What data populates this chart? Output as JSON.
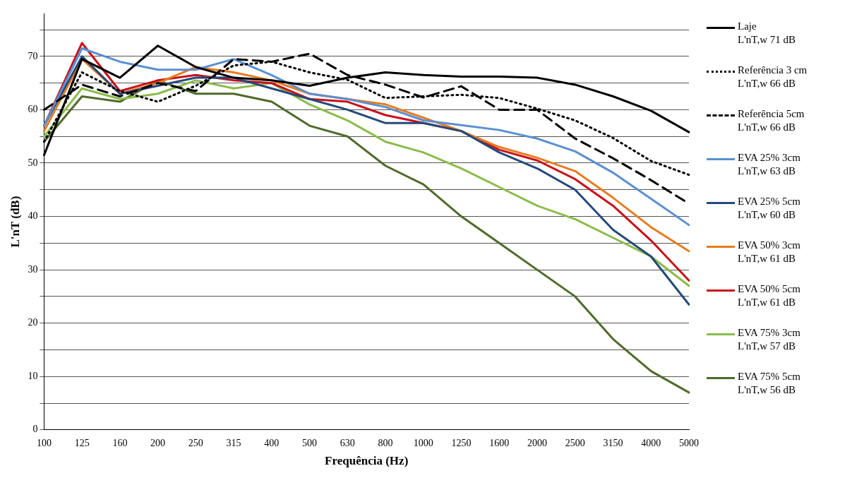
{
  "chart_data": {
    "type": "line",
    "xlabel": "Frequência (Hz)",
    "ylabel": "L'nT (dB)",
    "categories": [
      "100",
      "125",
      "160",
      "200",
      "250",
      "315",
      "400",
      "500",
      "630",
      "800",
      "1000",
      "1250",
      "1600",
      "2000",
      "2500",
      "3150",
      "4000",
      "5000"
    ],
    "ylim": [
      0,
      78
    ],
    "yticks": [
      0,
      {
        "value": 5,
        "label": null
      },
      10,
      {
        "value": 15,
        "label": null
      },
      20,
      {
        "value": 25,
        "label": null
      },
      30,
      {
        "value": 35,
        "label": null
      },
      40,
      {
        "value": 45,
        "label": null
      },
      50,
      {
        "value": 55,
        "label": null
      },
      60,
      {
        "value": 65,
        "label": null
      },
      70,
      {
        "value": 75,
        "label": null
      }
    ],
    "grid": "y",
    "legend": "right",
    "marker": "none",
    "series": [
      {
        "name": "Laje\nL'nT,w 71 dB",
        "color": "#000000",
        "line_style": "solid",
        "values": [
          51.5,
          69.5,
          66,
          72,
          68,
          66,
          65.5,
          64.5,
          66,
          67,
          66.5,
          66.2,
          66.2,
          66,
          64.7,
          62.5,
          59.8,
          55.8
        ]
      },
      {
        "name": "Referência 3 cm\nL'nT,w 66 dB",
        "color": "#000000",
        "line_style": "dotted",
        "values": [
          54,
          67,
          63.5,
          61.5,
          64.5,
          68.3,
          69,
          67,
          65.6,
          62.2,
          62.5,
          62.8,
          62.2,
          60.2,
          58,
          54.7,
          50.4,
          47.8
        ]
      },
      {
        "name": "Referência 5cm\nL'nT,w 66 dB",
        "color": "#000000",
        "line_style": "dashed",
        "values": [
          60,
          64.7,
          62.5,
          65,
          63.5,
          69.5,
          69,
          70.5,
          66.5,
          64.7,
          62.3,
          64.4,
          60,
          60,
          54.6,
          50.9,
          46.8,
          42.4
        ]
      },
      {
        "name": "EVA 25% 3cm\nL'nT,w 63 dB",
        "color": "#5b8fd0",
        "line_style": "solid",
        "values": [
          57,
          71.5,
          69,
          67.5,
          67.5,
          69.5,
          66.5,
          63,
          62,
          60.5,
          58,
          57.1,
          56.2,
          54.6,
          52.2,
          48.2,
          43.3,
          38.4
        ]
      },
      {
        "name": "EVA 25% 5cm\nL'nT,w 60 dB",
        "color": "#24497a",
        "line_style": "solid",
        "values": [
          57,
          70,
          63,
          64.5,
          66,
          66,
          64,
          62,
          60,
          57.5,
          57.5,
          56,
          52,
          49,
          45,
          37.5,
          32.5,
          23.5
        ]
      },
      {
        "name": "EVA 50% 3cm\nL'nT,w 61 dB",
        "color": "#e87b1e",
        "line_style": "solid",
        "values": [
          56,
          69.5,
          63,
          65,
          68,
          67,
          65.5,
          63,
          62,
          61,
          58.5,
          56,
          53,
          51,
          48.5,
          43.5,
          38,
          33.5
        ]
      },
      {
        "name": "EVA 50% 5cm\nL'nT,w 61 dB",
        "color": "#c8101a",
        "line_style": "solid",
        "values": [
          57,
          72.5,
          63.5,
          65.5,
          66.5,
          65.5,
          65,
          62,
          61.5,
          59,
          57.5,
          56,
          52.5,
          50.5,
          47,
          42,
          35.5,
          28
        ]
      },
      {
        "name": "EVA 75% 3cm\nL'nT,w 57 dB",
        "color": "#8cbb4a",
        "line_style": "solid",
        "values": [
          55,
          64,
          62,
          63,
          65.5,
          64,
          65,
          61,
          58,
          54,
          52,
          49,
          45.5,
          42,
          39.5,
          36,
          32.5,
          27
        ]
      },
      {
        "name": "EVA 75% 5cm\nL'nT,w 56 dB",
        "color": "#4f6a2a",
        "line_style": "solid",
        "values": [
          54,
          62.5,
          61.5,
          65.5,
          63,
          63,
          61.5,
          57,
          55,
          49.5,
          46,
          40,
          35,
          30,
          25,
          17,
          11,
          7
        ]
      }
    ]
  }
}
